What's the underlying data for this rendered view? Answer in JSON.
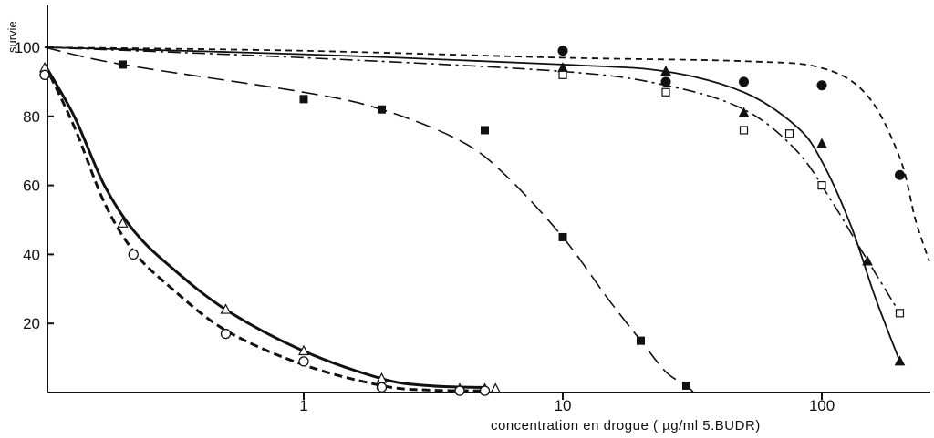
{
  "chart_data": {
    "type": "line",
    "xlabel": "concentration en drogue ( µg/ml 5.BUDR)",
    "ylabel": "survie",
    "xscale": "log",
    "xlim": [
      0.1,
      400
    ],
    "ylim": [
      0,
      113
    ],
    "xticks": [
      1,
      10,
      100
    ],
    "xtick_labels": [
      "1",
      "10",
      "100"
    ],
    "yticks": [
      20,
      40,
      60,
      80,
      100
    ],
    "ytick_labels": [
      "20",
      "40",
      "60",
      "80",
      "100"
    ],
    "grid": false,
    "series": [
      {
        "marker": "filled-circle",
        "line_style": "short-dash",
        "points": [
          [
            10,
            99
          ],
          [
            25,
            90
          ],
          [
            50,
            90
          ],
          [
            100,
            89
          ],
          [
            200,
            63
          ]
        ],
        "curve": [
          [
            0.1,
            100
          ],
          [
            1,
            99
          ],
          [
            10,
            97
          ],
          [
            50,
            96
          ],
          [
            100,
            94
          ],
          [
            150,
            86
          ],
          [
            200,
            68
          ],
          [
            230,
            50
          ],
          [
            260,
            38
          ]
        ]
      },
      {
        "marker": "filled-triangle",
        "line_style": "solid",
        "points": [
          [
            10,
            94
          ],
          [
            25,
            93
          ],
          [
            50,
            81
          ],
          [
            100,
            72
          ],
          [
            150,
            38
          ],
          [
            200,
            9
          ]
        ],
        "curve": [
          [
            0.1,
            100
          ],
          [
            1,
            98
          ],
          [
            10,
            95
          ],
          [
            25,
            93
          ],
          [
            50,
            87
          ],
          [
            80,
            77
          ],
          [
            100,
            67
          ],
          [
            130,
            48
          ],
          [
            160,
            28
          ],
          [
            200,
            9
          ]
        ]
      },
      {
        "marker": "open-square",
        "line_style": "dash-dot",
        "points": [
          [
            10,
            92
          ],
          [
            25,
            87
          ],
          [
            50,
            76
          ],
          [
            75,
            75
          ],
          [
            100,
            60
          ],
          [
            200,
            23
          ]
        ],
        "curve": [
          [
            0.1,
            100
          ],
          [
            1,
            97
          ],
          [
            10,
            93
          ],
          [
            25,
            89
          ],
          [
            50,
            82
          ],
          [
            80,
            70
          ],
          [
            110,
            55
          ],
          [
            140,
            42
          ],
          [
            200,
            23
          ]
        ]
      },
      {
        "marker": "filled-square",
        "line_style": "long-dash",
        "points": [
          [
            0.2,
            95
          ],
          [
            1,
            85
          ],
          [
            2,
            82
          ],
          [
            5,
            76
          ],
          [
            10,
            45
          ],
          [
            20,
            15
          ],
          [
            30,
            2
          ]
        ],
        "curve": [
          [
            0.1,
            100
          ],
          [
            0.2,
            95
          ],
          [
            1,
            87
          ],
          [
            2,
            82
          ],
          [
            4,
            73
          ],
          [
            6,
            63
          ],
          [
            10,
            45
          ],
          [
            15,
            27
          ],
          [
            20,
            15
          ],
          [
            25,
            6
          ],
          [
            30,
            2
          ],
          [
            32,
            0
          ]
        ]
      },
      {
        "marker": "open-triangle",
        "line_style": "solid-thick",
        "points": [
          [
            0.1,
            94
          ],
          [
            0.2,
            49
          ],
          [
            0.5,
            24
          ],
          [
            1,
            12
          ],
          [
            2,
            4
          ],
          [
            4,
            1
          ],
          [
            5,
            1
          ],
          [
            5.5,
            1
          ]
        ],
        "curve": [
          [
            0.1,
            95
          ],
          [
            0.13,
            80
          ],
          [
            0.17,
            60
          ],
          [
            0.22,
            47
          ],
          [
            0.3,
            37
          ],
          [
            0.5,
            24
          ],
          [
            1,
            12
          ],
          [
            2,
            4
          ],
          [
            3,
            2
          ],
          [
            4.5,
            1.5
          ],
          [
            5,
            1.5
          ]
        ]
      },
      {
        "marker": "open-circle",
        "line_style": "dash-thick",
        "points": [
          [
            0.1,
            92
          ],
          [
            0.22,
            40
          ],
          [
            0.5,
            17
          ],
          [
            1,
            9
          ],
          [
            2,
            1.5
          ],
          [
            4,
            0.5
          ],
          [
            5,
            0.5
          ]
        ],
        "curve": [
          [
            0.1,
            95
          ],
          [
            0.13,
            77
          ],
          [
            0.17,
            55
          ],
          [
            0.22,
            41
          ],
          [
            0.3,
            31
          ],
          [
            0.5,
            18
          ],
          [
            1,
            8
          ],
          [
            2,
            2
          ],
          [
            3,
            0.7
          ],
          [
            5,
            0.5
          ]
        ]
      }
    ]
  }
}
